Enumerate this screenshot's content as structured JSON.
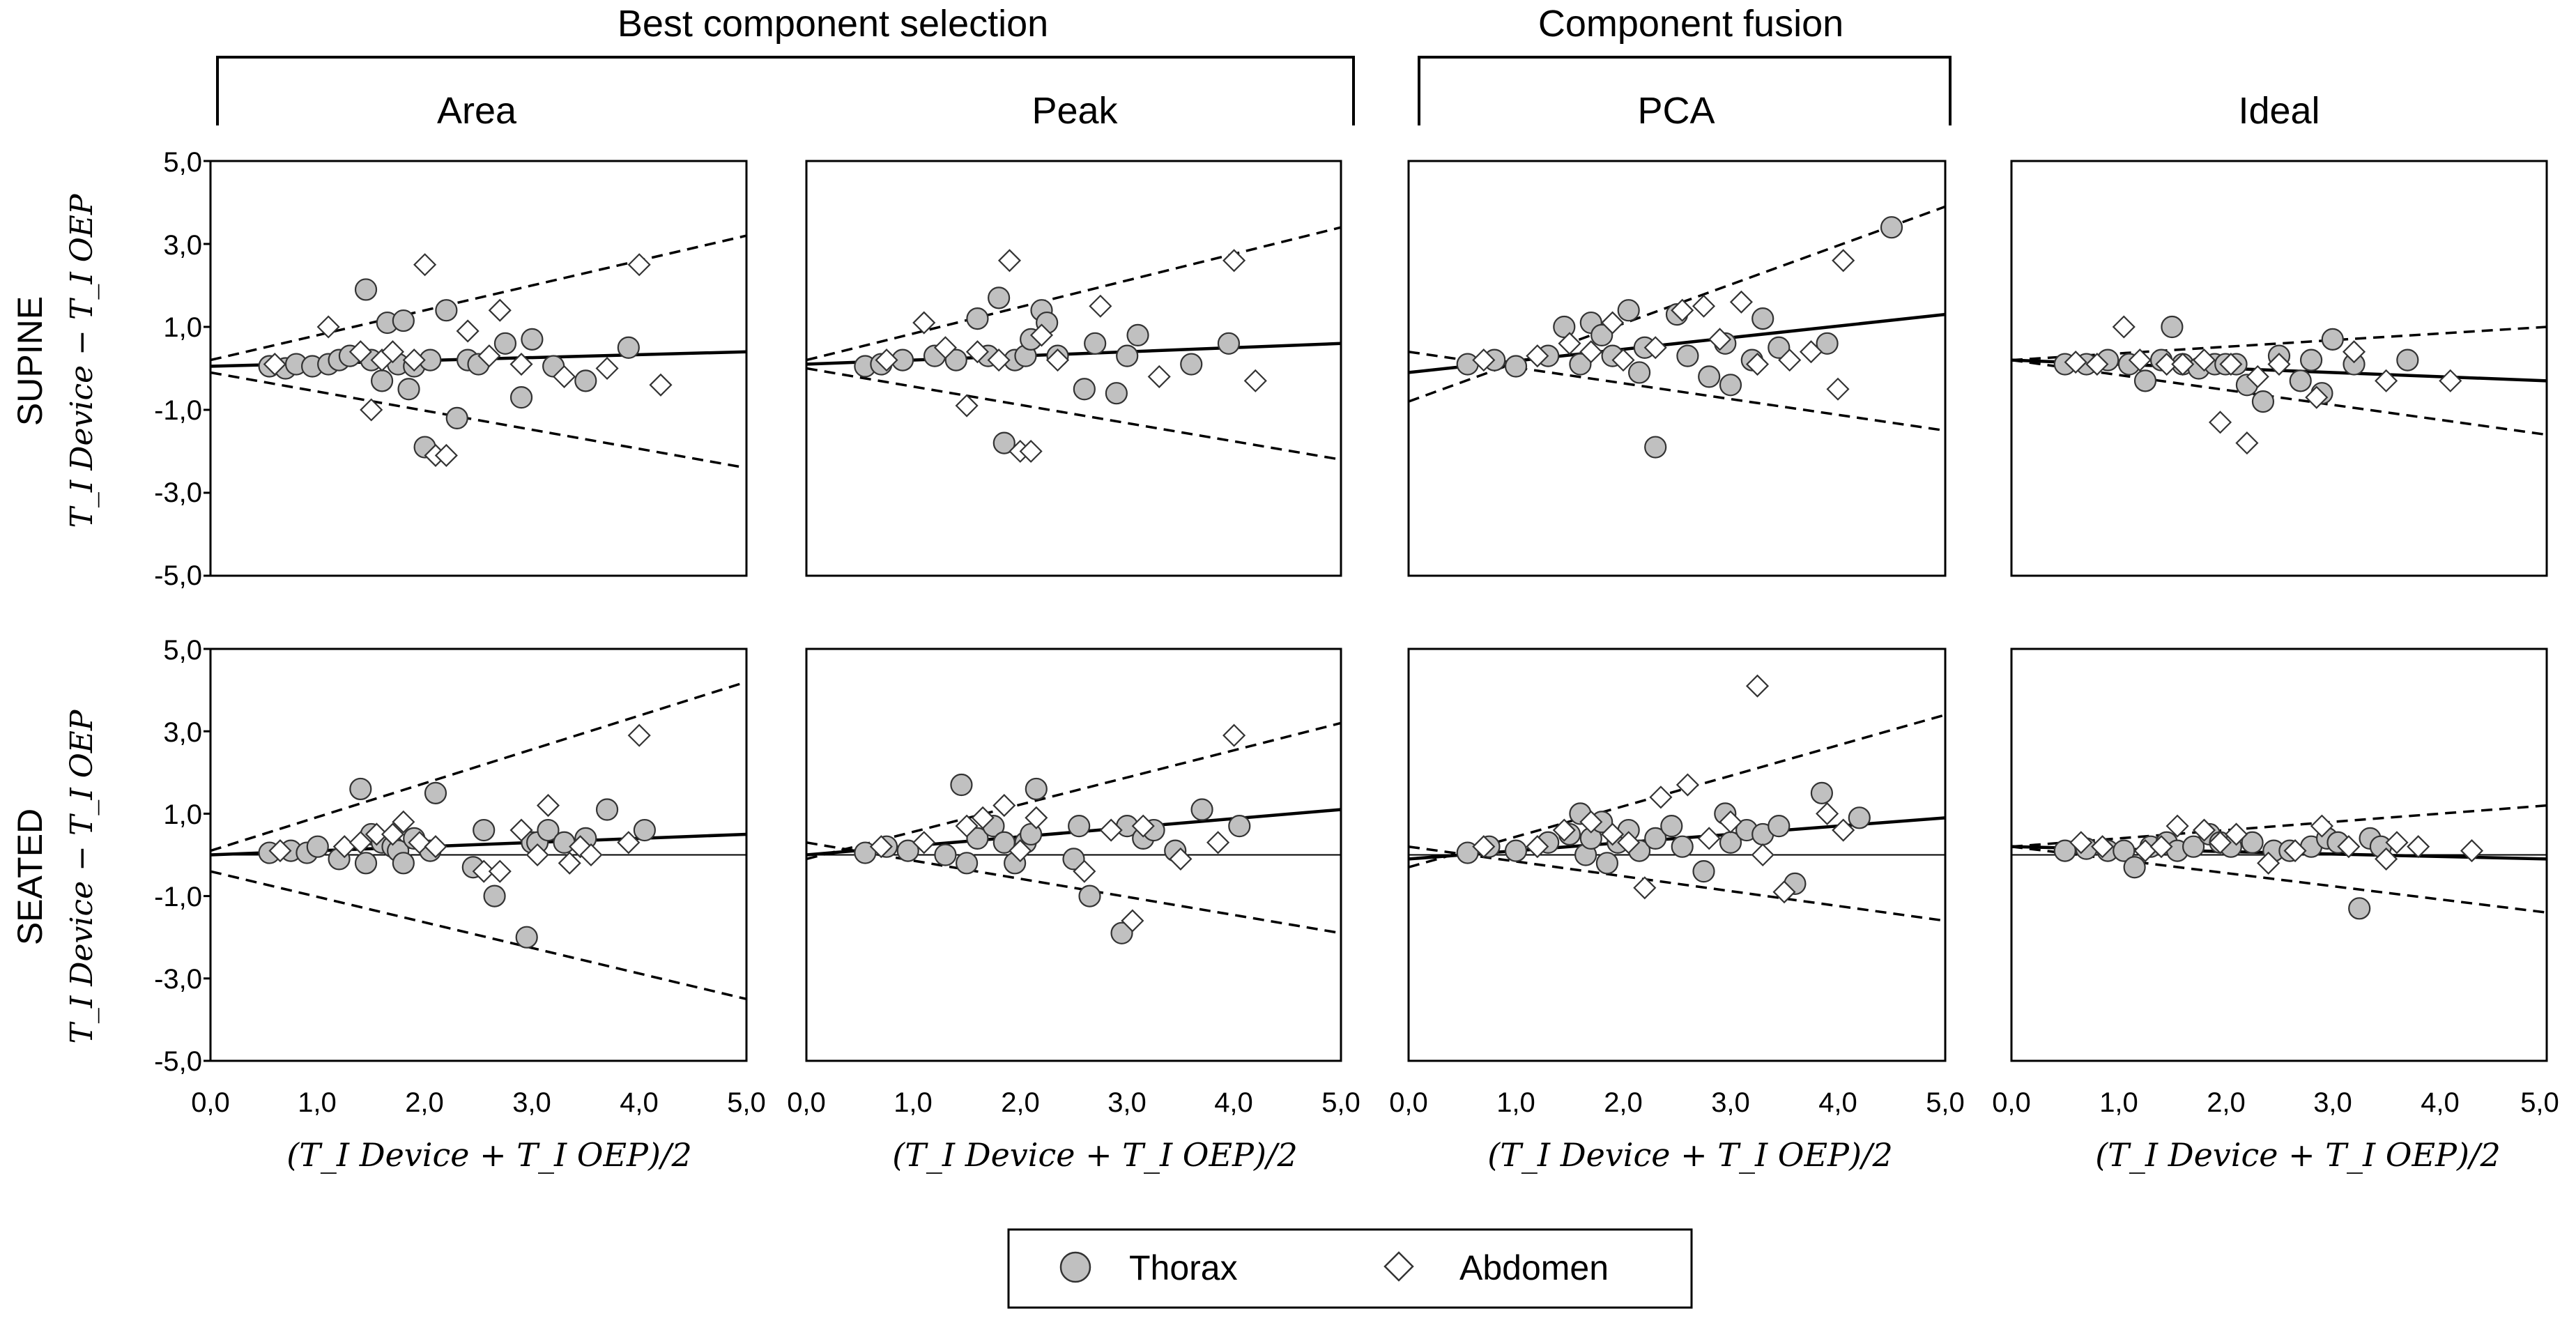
{
  "group_headers": [
    {
      "label": "Best component selection"
    },
    {
      "label": "Component fusion"
    }
  ],
  "column_titles": [
    "Area",
    "Peak",
    "PCA",
    "Ideal"
  ],
  "row_labels": [
    {
      "posture": "SUPINE",
      "ylabel": "T_I Device − T_I OEP"
    },
    {
      "posture": "SEATED",
      "ylabel": "T_I Device − T_I OEP"
    }
  ],
  "xlabel": "(T_I Device + T_I OEP)/2",
  "x_tick_labels": [
    "0,0",
    "1,0",
    "2,0",
    "3,0",
    "4,0",
    "5,0"
  ],
  "y_tick_labels": [
    "5,0",
    "3,0",
    "1,0",
    "-1,0",
    "-3,0",
    "-5,0"
  ],
  "legend": {
    "items": [
      {
        "label": "Thorax",
        "marker": "circle"
      },
      {
        "label": "Abdomen",
        "marker": "diamond"
      }
    ]
  },
  "colors": {
    "thorax_fill": "#c0c0c0",
    "marker_stroke": "#333333",
    "line": "#000000"
  },
  "chart_data": [
    {
      "type": "scatter",
      "title": "Area",
      "posture": "SUPINE",
      "xlim": [
        0,
        5
      ],
      "ylim": [
        -5,
        5
      ],
      "regression": {
        "x": [
          0,
          5
        ],
        "y": [
          0.05,
          0.4
        ]
      },
      "limits_upper": {
        "x": [
          0,
          5
        ],
        "y": [
          0.2,
          3.2
        ]
      },
      "limits_lower": {
        "x": [
          0,
          5
        ],
        "y": [
          -0.1,
          -2.4
        ]
      },
      "zero_line": false,
      "series": [
        {
          "name": "Thorax",
          "x": [
            0.55,
            0.7,
            0.8,
            0.95,
            1.1,
            1.2,
            1.3,
            1.45,
            1.5,
            1.6,
            1.65,
            1.75,
            1.8,
            1.85,
            1.9,
            2.0,
            2.05,
            2.2,
            2.3,
            2.4,
            2.5,
            2.75,
            2.9,
            3.0,
            3.2,
            3.5,
            3.9
          ],
          "y": [
            0.05,
            0.0,
            0.1,
            0.05,
            0.1,
            0.2,
            0.3,
            1.9,
            0.2,
            -0.3,
            1.1,
            0.1,
            1.15,
            -0.5,
            0.05,
            -1.9,
            0.2,
            1.4,
            -1.2,
            0.2,
            0.1,
            0.6,
            -0.7,
            0.7,
            0.05,
            -0.3,
            0.5
          ]
        },
        {
          "name": "Abdomen",
          "x": [
            0.6,
            1.1,
            1.4,
            1.5,
            1.6,
            1.7,
            1.9,
            2.0,
            2.1,
            2.2,
            2.4,
            2.6,
            2.7,
            2.9,
            3.3,
            3.7,
            4.0,
            4.2
          ],
          "y": [
            0.1,
            1.0,
            0.4,
            -1.0,
            0.2,
            0.4,
            0.2,
            2.5,
            -2.1,
            -2.1,
            0.9,
            0.3,
            1.4,
            0.1,
            -0.2,
            0.0,
            2.5,
            -0.4
          ]
        }
      ]
    },
    {
      "type": "scatter",
      "title": "Peak",
      "posture": "SUPINE",
      "xlim": [
        0,
        5
      ],
      "ylim": [
        -5,
        5
      ],
      "regression": {
        "x": [
          0,
          5
        ],
        "y": [
          0.1,
          0.6
        ]
      },
      "limits_upper": {
        "x": [
          0,
          5
        ],
        "y": [
          0.2,
          3.4
        ]
      },
      "limits_lower": {
        "x": [
          0,
          5
        ],
        "y": [
          0.0,
          -2.2
        ]
      },
      "zero_line": false,
      "series": [
        {
          "name": "Thorax",
          "x": [
            0.55,
            0.7,
            0.9,
            1.2,
            1.4,
            1.6,
            1.7,
            1.8,
            1.85,
            1.95,
            2.05,
            2.1,
            2.2,
            2.25,
            2.35,
            2.6,
            2.7,
            2.9,
            3.0,
            3.1,
            3.6,
            3.95
          ],
          "y": [
            0.05,
            0.1,
            0.2,
            0.3,
            0.2,
            1.2,
            0.3,
            1.7,
            -1.8,
            0.2,
            0.3,
            0.7,
            1.4,
            1.1,
            0.3,
            -0.5,
            0.6,
            -0.6,
            0.3,
            0.8,
            0.1,
            0.6
          ]
        },
        {
          "name": "Abdomen",
          "x": [
            0.75,
            1.1,
            1.3,
            1.5,
            1.6,
            1.8,
            1.9,
            2.0,
            2.1,
            2.2,
            2.35,
            2.75,
            3.3,
            4.0,
            4.2
          ],
          "y": [
            0.2,
            1.1,
            0.5,
            -0.9,
            0.4,
            0.2,
            2.6,
            -2.0,
            -2.0,
            0.8,
            0.2,
            1.5,
            -0.2,
            2.6,
            -0.3
          ]
        }
      ]
    },
    {
      "type": "scatter",
      "title": "PCA",
      "posture": "SUPINE",
      "xlim": [
        0,
        5
      ],
      "ylim": [
        -5,
        5
      ],
      "regression": {
        "x": [
          0,
          5
        ],
        "y": [
          -0.1,
          1.3
        ]
      },
      "limits_upper": {
        "x": [
          0,
          5
        ],
        "y": [
          -0.8,
          3.9
        ]
      },
      "limits_lower": {
        "x": [
          0,
          5
        ],
        "y": [
          0.4,
          -1.5
        ]
      },
      "zero_line": false,
      "series": [
        {
          "name": "Thorax",
          "x": [
            0.55,
            0.8,
            1.0,
            1.3,
            1.45,
            1.6,
            1.7,
            1.8,
            1.9,
            2.05,
            2.15,
            2.2,
            2.3,
            2.5,
            2.6,
            2.8,
            2.95,
            3.0,
            3.2,
            3.3,
            3.45,
            3.9,
            4.5
          ],
          "y": [
            0.1,
            0.2,
            0.05,
            0.3,
            1.0,
            0.1,
            1.1,
            0.8,
            0.3,
            1.4,
            -0.1,
            0.5,
            -1.9,
            1.3,
            0.3,
            -0.2,
            0.6,
            -0.4,
            0.2,
            1.2,
            0.5,
            0.6,
            3.4
          ]
        },
        {
          "name": "Abdomen",
          "x": [
            0.7,
            1.2,
            1.5,
            1.7,
            1.9,
            2.0,
            2.3,
            2.55,
            2.75,
            2.9,
            3.1,
            3.25,
            3.55,
            3.75,
            4.0,
            4.05
          ],
          "y": [
            0.2,
            0.3,
            0.6,
            0.4,
            1.1,
            0.2,
            0.5,
            1.4,
            1.5,
            0.7,
            1.6,
            0.1,
            0.2,
            0.4,
            -0.5,
            2.6
          ]
        }
      ]
    },
    {
      "type": "scatter",
      "title": "Ideal",
      "posture": "SUPINE",
      "xlim": [
        0,
        5
      ],
      "ylim": [
        -5,
        5
      ],
      "regression": {
        "x": [
          0,
          5
        ],
        "y": [
          0.2,
          -0.3
        ]
      },
      "limits_upper": {
        "x": [
          0,
          5
        ],
        "y": [
          0.2,
          1.0
        ]
      },
      "limits_lower": {
        "x": [
          0,
          5
        ],
        "y": [
          0.2,
          -1.6
        ]
      },
      "zero_line": false,
      "series": [
        {
          "name": "Thorax",
          "x": [
            0.5,
            0.7,
            0.9,
            1.1,
            1.25,
            1.4,
            1.5,
            1.6,
            1.75,
            1.9,
            2.0,
            2.1,
            2.2,
            2.35,
            2.5,
            2.7,
            2.8,
            2.9,
            3.0,
            3.2,
            3.7
          ],
          "y": [
            0.1,
            0.1,
            0.2,
            0.1,
            -0.3,
            0.2,
            1.0,
            0.1,
            0.0,
            0.1,
            0.1,
            0.1,
            -0.4,
            -0.8,
            0.3,
            -0.3,
            0.2,
            -0.6,
            0.7,
            0.1,
            0.2
          ]
        },
        {
          "name": "Abdomen",
          "x": [
            0.6,
            0.8,
            1.05,
            1.2,
            1.45,
            1.6,
            1.8,
            1.95,
            2.05,
            2.2,
            2.3,
            2.5,
            2.85,
            3.2,
            3.5,
            4.1
          ],
          "y": [
            0.15,
            0.1,
            1.0,
            0.2,
            0.1,
            0.1,
            0.2,
            -1.3,
            0.1,
            -1.8,
            -0.2,
            0.1,
            -0.7,
            0.4,
            -0.3,
            -0.3
          ]
        }
      ]
    },
    {
      "type": "scatter",
      "title": "Area",
      "posture": "SEATED",
      "xlim": [
        0,
        5
      ],
      "ylim": [
        -5,
        5
      ],
      "regression": {
        "x": [
          0,
          5
        ],
        "y": [
          0.0,
          0.5
        ]
      },
      "limits_upper": {
        "x": [
          0,
          5
        ],
        "y": [
          0.1,
          4.2
        ]
      },
      "limits_lower": {
        "x": [
          0,
          5
        ],
        "y": [
          -0.4,
          -3.5
        ]
      },
      "zero_line": true,
      "series": [
        {
          "name": "Thorax",
          "x": [
            0.55,
            0.75,
            0.9,
            1.0,
            1.2,
            1.4,
            1.45,
            1.5,
            1.6,
            1.7,
            1.75,
            1.8,
            1.9,
            2.05,
            2.1,
            2.45,
            2.55,
            2.65,
            2.95,
            3.0,
            3.05,
            3.15,
            3.3,
            3.5,
            3.7,
            4.05
          ],
          "y": [
            0.05,
            0.1,
            0.05,
            0.2,
            -0.1,
            1.6,
            -0.2,
            0.5,
            0.3,
            0.2,
            0.1,
            -0.2,
            0.4,
            0.1,
            1.5,
            -0.3,
            0.6,
            -1.0,
            -2.0,
            0.3,
            0.3,
            0.6,
            0.3,
            0.4,
            1.1,
            0.6
          ]
        },
        {
          "name": "Abdomen",
          "x": [
            0.65,
            1.25,
            1.4,
            1.55,
            1.7,
            1.8,
            1.95,
            2.1,
            2.55,
            2.7,
            2.9,
            3.05,
            3.15,
            3.35,
            3.45,
            3.55,
            3.9,
            4.0
          ],
          "y": [
            0.1,
            0.2,
            0.3,
            0.5,
            0.5,
            0.8,
            0.3,
            0.2,
            -0.4,
            -0.4,
            0.6,
            0.0,
            1.2,
            -0.2,
            0.2,
            0.0,
            0.3,
            2.9
          ]
        }
      ]
    },
    {
      "type": "scatter",
      "title": "Peak",
      "posture": "SEATED",
      "xlim": [
        0,
        5
      ],
      "ylim": [
        -5,
        5
      ],
      "regression": {
        "x": [
          0,
          5
        ],
        "y": [
          0.0,
          1.1
        ]
      },
      "limits_upper": {
        "x": [
          0,
          5
        ],
        "y": [
          -0.1,
          3.2
        ]
      },
      "limits_lower": {
        "x": [
          0,
          5
        ],
        "y": [
          0.3,
          -1.9
        ]
      },
      "zero_line": true,
      "series": [
        {
          "name": "Thorax",
          "x": [
            0.55,
            0.75,
            0.95,
            1.3,
            1.45,
            1.5,
            1.6,
            1.75,
            1.85,
            1.95,
            2.05,
            2.1,
            2.15,
            2.5,
            2.55,
            2.65,
            2.95,
            3.0,
            3.15,
            3.25,
            3.45,
            3.7,
            4.05
          ],
          "y": [
            0.05,
            0.2,
            0.1,
            0.0,
            1.7,
            -0.2,
            0.4,
            0.7,
            0.3,
            -0.2,
            0.3,
            0.5,
            1.6,
            -0.1,
            0.7,
            -1.0,
            -1.9,
            0.7,
            0.4,
            0.6,
            0.1,
            1.1,
            0.7
          ]
        },
        {
          "name": "Abdomen",
          "x": [
            0.7,
            1.1,
            1.5,
            1.65,
            1.85,
            2.0,
            2.15,
            2.6,
            2.85,
            3.05,
            3.15,
            3.5,
            3.85,
            4.0
          ],
          "y": [
            0.2,
            0.3,
            0.7,
            0.9,
            1.2,
            0.1,
            0.9,
            -0.4,
            0.6,
            -1.6,
            0.7,
            -0.1,
            0.3,
            2.9
          ]
        }
      ]
    },
    {
      "type": "scatter",
      "title": "PCA",
      "posture": "SEATED",
      "xlim": [
        0,
        5
      ],
      "ylim": [
        -5,
        5
      ],
      "regression": {
        "x": [
          0,
          5
        ],
        "y": [
          -0.1,
          0.9
        ]
      },
      "limits_upper": {
        "x": [
          0,
          5
        ],
        "y": [
          -0.3,
          3.4
        ]
      },
      "limits_lower": {
        "x": [
          0,
          5
        ],
        "y": [
          0.2,
          -1.6
        ]
      },
      "zero_line": true,
      "series": [
        {
          "name": "Thorax",
          "x": [
            0.55,
            0.75,
            1.0,
            1.3,
            1.5,
            1.6,
            1.65,
            1.7,
            1.8,
            1.85,
            1.95,
            2.05,
            2.15,
            2.3,
            2.45,
            2.55,
            2.75,
            2.95,
            3.0,
            3.15,
            3.3,
            3.45,
            3.6,
            3.85,
            4.2
          ],
          "y": [
            0.05,
            0.2,
            0.1,
            0.3,
            0.5,
            1.0,
            0.0,
            0.4,
            0.8,
            -0.2,
            0.3,
            0.6,
            0.1,
            0.4,
            0.7,
            0.2,
            -0.4,
            1.0,
            0.3,
            0.6,
            0.5,
            0.7,
            -0.7,
            1.5,
            0.9
          ]
        },
        {
          "name": "Abdomen",
          "x": [
            0.7,
            1.2,
            1.45,
            1.7,
            1.9,
            2.05,
            2.2,
            2.35,
            2.6,
            2.8,
            3.0,
            3.25,
            3.3,
            3.5,
            3.9,
            4.05
          ],
          "y": [
            0.2,
            0.2,
            0.6,
            0.8,
            0.5,
            0.3,
            -0.8,
            1.4,
            1.7,
            0.4,
            0.8,
            4.1,
            0.0,
            -0.9,
            1.0,
            0.6
          ]
        }
      ]
    },
    {
      "type": "scatter",
      "title": "Ideal",
      "posture": "SEATED",
      "xlim": [
        0,
        5
      ],
      "ylim": [
        -5,
        5
      ],
      "regression": {
        "x": [
          0,
          5
        ],
        "y": [
          0.2,
          -0.1
        ]
      },
      "limits_upper": {
        "x": [
          0,
          5
        ],
        "y": [
          0.2,
          1.2
        ]
      },
      "limits_lower": {
        "x": [
          0,
          5
        ],
        "y": [
          0.2,
          -1.4
        ]
      },
      "zero_line": true,
      "series": [
        {
          "name": "Thorax",
          "x": [
            0.5,
            0.7,
            0.9,
            1.05,
            1.15,
            1.3,
            1.45,
            1.55,
            1.7,
            1.85,
            1.95,
            2.05,
            2.25,
            2.45,
            2.6,
            2.8,
            2.95,
            3.05,
            3.25,
            3.35,
            3.45
          ],
          "y": [
            0.1,
            0.15,
            0.1,
            0.1,
            -0.3,
            0.2,
            0.3,
            0.1,
            0.2,
            0.5,
            0.3,
            0.2,
            0.3,
            0.1,
            0.1,
            0.2,
            0.4,
            0.3,
            -1.3,
            0.4,
            0.2
          ]
        },
        {
          "name": "Abdomen",
          "x": [
            0.65,
            0.85,
            1.25,
            1.4,
            1.55,
            1.8,
            1.95,
            2.1,
            2.4,
            2.65,
            2.9,
            3.15,
            3.5,
            3.6,
            3.8,
            4.3
          ],
          "y": [
            0.3,
            0.2,
            0.1,
            0.2,
            0.7,
            0.6,
            0.3,
            0.5,
            -0.2,
            0.1,
            0.7,
            0.2,
            -0.1,
            0.3,
            0.2,
            0.1
          ]
        }
      ]
    }
  ]
}
